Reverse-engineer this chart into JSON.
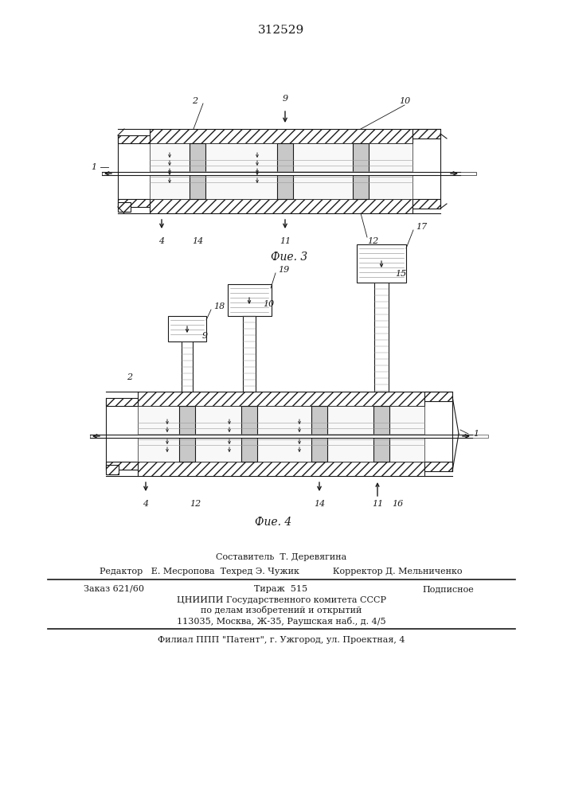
{
  "title": "312529",
  "fig3_caption": "Фие. 3",
  "fig4_caption": "Фие. 4",
  "bg_color": "#ffffff",
  "line_color": "#1a1a1a",
  "footer_line1": "Составитель  Т. Деревягина",
  "footer_line2": "Редактор   Е. Месропова  Техред Э. Чужик            Корректор Д. Мельниченко",
  "footer_zak": "Заказ 621/60",
  "footer_tir": "Тираж  515",
  "footer_pod": "Подписное",
  "footer_cnipi": "ЦНИИПИ Государственного комитета СССР",
  "footer_del": "по делам изобретений и открытий",
  "footer_addr": "113035, Москва, Ж-35, Раушская наб., д. 4/5",
  "footer_filial": "Филиал ППП \"Патент\", г. Ужгород, ул. Проектная, 4"
}
